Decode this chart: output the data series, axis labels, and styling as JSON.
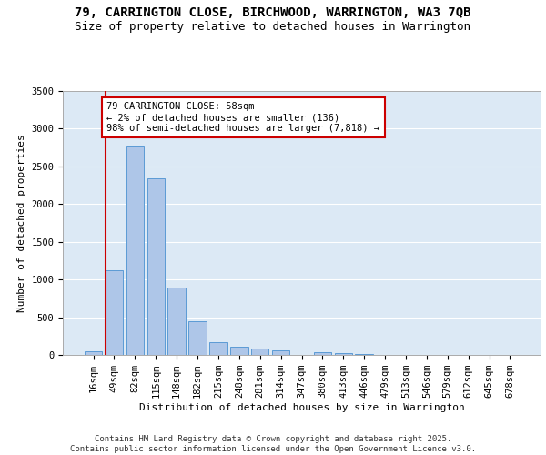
{
  "title_line1": "79, CARRINGTON CLOSE, BIRCHWOOD, WARRINGTON, WA3 7QB",
  "title_line2": "Size of property relative to detached houses in Warrington",
  "xlabel": "Distribution of detached houses by size in Warrington",
  "ylabel": "Number of detached properties",
  "categories": [
    "16sqm",
    "49sqm",
    "82sqm",
    "115sqm",
    "148sqm",
    "182sqm",
    "215sqm",
    "248sqm",
    "281sqm",
    "314sqm",
    "347sqm",
    "380sqm",
    "413sqm",
    "446sqm",
    "479sqm",
    "513sqm",
    "546sqm",
    "579sqm",
    "612sqm",
    "645sqm",
    "678sqm"
  ],
  "values": [
    50,
    1120,
    2780,
    2340,
    895,
    445,
    175,
    105,
    90,
    60,
    5,
    40,
    20,
    15,
    0,
    0,
    0,
    0,
    0,
    0,
    0
  ],
  "bar_color": "#aec6e8",
  "bar_edge_color": "#5b9bd5",
  "background_color": "#dce9f5",
  "grid_color": "#ffffff",
  "vline_color": "#cc0000",
  "annotation_text": "79 CARRINGTON CLOSE: 58sqm\n← 2% of detached houses are smaller (136)\n98% of semi-detached houses are larger (7,818) →",
  "annotation_box_color": "#cc0000",
  "ylim": [
    0,
    3500
  ],
  "yticks": [
    0,
    500,
    1000,
    1500,
    2000,
    2500,
    3000,
    3500
  ],
  "footer_text": "Contains HM Land Registry data © Crown copyright and database right 2025.\nContains public sector information licensed under the Open Government Licence v3.0.",
  "title_fontsize": 10,
  "subtitle_fontsize": 9,
  "axis_label_fontsize": 8,
  "tick_fontsize": 7.5,
  "footer_fontsize": 6.5
}
